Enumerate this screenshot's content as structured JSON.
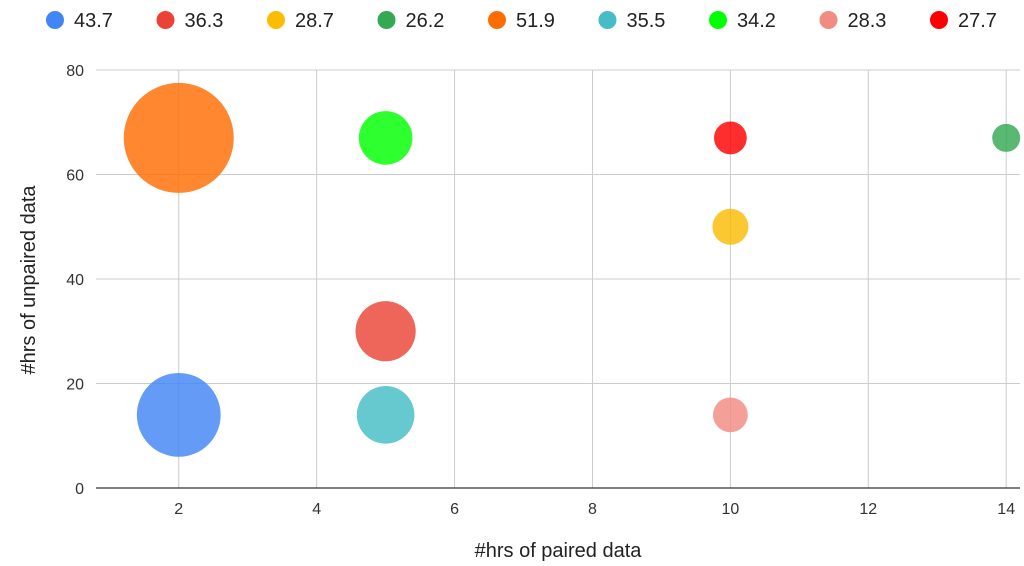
{
  "chart_data": {
    "type": "bubble",
    "title": "",
    "xlabel": "#hrs of paired data",
    "ylabel": "#hrs of unpaired data",
    "xlim": [
      0.8,
      14.2
    ],
    "ylim": [
      0,
      80
    ],
    "x_ticks": [
      2,
      4,
      6,
      8,
      10,
      12,
      14
    ],
    "y_ticks": [
      0,
      20,
      40,
      60,
      80
    ],
    "grid": true,
    "legend_position": "top",
    "points": [
      {
        "label": "43.7",
        "x": 2,
        "y": 14,
        "size": 43.7,
        "color": "#4285F4"
      },
      {
        "label": "36.3",
        "x": 5,
        "y": 30,
        "size": 36.3,
        "color": "#EA4335"
      },
      {
        "label": "28.7",
        "x": 10,
        "y": 50,
        "size": 28.7,
        "color": "#FBBC04"
      },
      {
        "label": "26.2",
        "x": 14,
        "y": 67,
        "size": 26.2,
        "color": "#34A853"
      },
      {
        "label": "51.9",
        "x": 2,
        "y": 67,
        "size": 51.9,
        "color": "#FF6D01"
      },
      {
        "label": "35.5",
        "x": 5,
        "y": 14,
        "size": 35.5,
        "color": "#46BDC6"
      },
      {
        "label": "34.2",
        "x": 5,
        "y": 67,
        "size": 34.2,
        "color": "#00FF00"
      },
      {
        "label": "28.3",
        "x": 10,
        "y": 14,
        "size": 28.3,
        "color": "#F28B82"
      },
      {
        "label": "27.7",
        "x": 10,
        "y": 67,
        "size": 27.7,
        "color": "#FF0000"
      }
    ]
  }
}
